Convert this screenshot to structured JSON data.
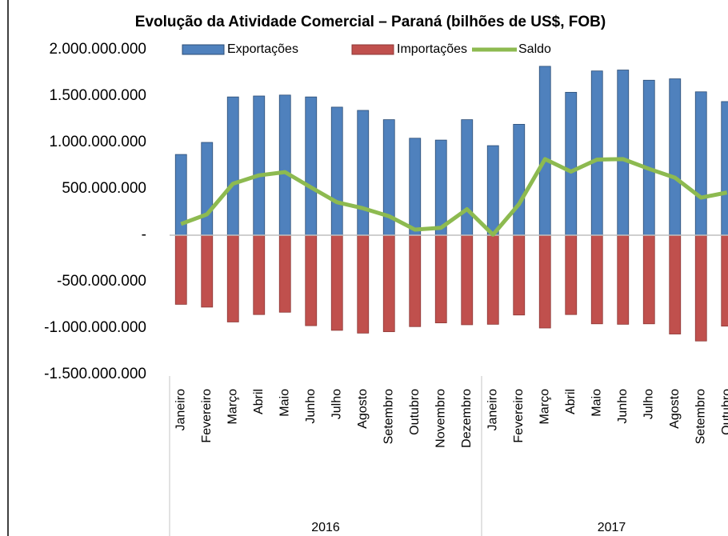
{
  "chart_data": {
    "type": "bar_line",
    "title": "Evolução da Atividade Comercial – Paraná (bilhões de US$, FOB)",
    "categories": [
      "Janeiro",
      "Fevereiro",
      "Março",
      "Abril",
      "Maio",
      "Junho",
      "Julho",
      "Agosto",
      "Setembro",
      "Outubro",
      "Novembro",
      "Dezembro",
      "Janeiro",
      "Fevereiro",
      "Março",
      "Abril",
      "Maio",
      "Junho",
      "Julho",
      "Agosto",
      "Setembro",
      "Outubro"
    ],
    "x_groups": [
      {
        "name": "2016",
        "categories": 12
      },
      {
        "name": "2017",
        "categories": 10
      }
    ],
    "series": [
      {
        "name": "Exportações",
        "type": "bar",
        "color": "#4f81bd",
        "values": [
          870000000,
          1000000000,
          1490000000,
          1500000000,
          1510000000,
          1490000000,
          1380000000,
          1345000000,
          1245000000,
          1045000000,
          1025000000,
          1245000000,
          965000000,
          1195000000,
          1820000000,
          1540000000,
          1770000000,
          1780000000,
          1670000000,
          1685000000,
          1545000000,
          1440000000
        ]
      },
      {
        "name": "Importações",
        "type": "bar",
        "color": "#c0504d",
        "values": [
          -745000000,
          -775000000,
          -935000000,
          -855000000,
          -830000000,
          -975000000,
          -1025000000,
          -1055000000,
          -1040000000,
          -985000000,
          -945000000,
          -965000000,
          -960000000,
          -860000000,
          -1000000000,
          -855000000,
          -955000000,
          -960000000,
          -955000000,
          -1065000000,
          -1140000000,
          -980000000
        ]
      },
      {
        "name": "Saldo",
        "type": "line",
        "color": "#8dba50",
        "values": [
          121000000,
          225000000,
          555000000,
          645000000,
          680000000,
          515000000,
          355000000,
          290000000,
          205000000,
          60000000,
          80000000,
          280000000,
          5000000,
          335000000,
          820000000,
          685000000,
          815000000,
          820000000,
          715000000,
          620000000,
          405000000,
          460000000
        ]
      }
    ],
    "ylim": [
      -1500000000,
      2000000000
    ],
    "yticks": [
      {
        "value": -1500000000,
        "label": "-1.500.000.000"
      },
      {
        "value": -1000000000,
        "label": "-1.000.000.000"
      },
      {
        "value": -500000000,
        "label": "-500.000.000"
      },
      {
        "value": 0,
        "label": "-"
      },
      {
        "value": 500000000,
        "label": "500.000.000"
      },
      {
        "value": 1000000000,
        "label": "1.000.000.000"
      },
      {
        "value": 1500000000,
        "label": "1.500.000.000"
      },
      {
        "value": 2000000000,
        "label": "2.000.000.000"
      }
    ],
    "legend": "top"
  }
}
